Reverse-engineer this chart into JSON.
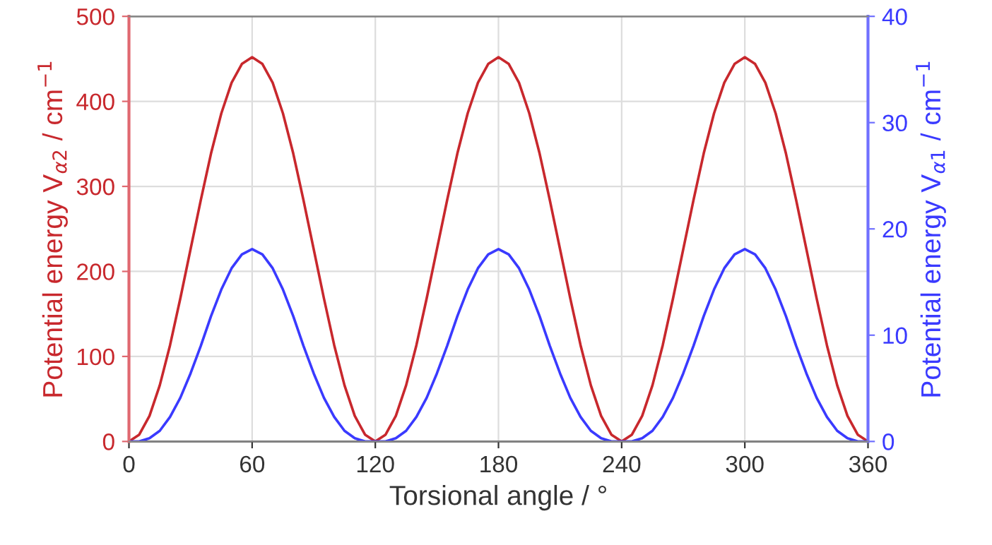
{
  "chart_data": {
    "type": "line",
    "xlabel": "Torsional angle / °",
    "ylabel": "Potential energy V$_{α2}$ / cm$^{−1}$",
    "y2label": "Potential energy V$_{α1}$ / cm$^{−1}$",
    "x": [
      0,
      5,
      10,
      15,
      20,
      25,
      30,
      35,
      40,
      45,
      50,
      55,
      60,
      65,
      70,
      75,
      80,
      85,
      90,
      95,
      100,
      105,
      110,
      115,
      120,
      125,
      130,
      135,
      140,
      145,
      150,
      155,
      160,
      165,
      170,
      175,
      180,
      185,
      190,
      195,
      200,
      205,
      210,
      215,
      220,
      225,
      230,
      235,
      240,
      245,
      250,
      255,
      260,
      265,
      270,
      275,
      280,
      285,
      290,
      295,
      300,
      305,
      310,
      315,
      320,
      325,
      330,
      335,
      340,
      345,
      350,
      355,
      360
    ],
    "series": [
      {
        "color": "#c8282d",
        "values": [
          0,
          8,
          30,
          66,
          113,
          168,
          226,
          284,
          339,
          386,
          422,
          444,
          452,
          444,
          422,
          386,
          339,
          284,
          226,
          168,
          113,
          66,
          30,
          8,
          0,
          8,
          30,
          66,
          113,
          168,
          226,
          284,
          339,
          386,
          422,
          444,
          452,
          444,
          422,
          386,
          339,
          284,
          226,
          168,
          113,
          66,
          30,
          8,
          0,
          8,
          30,
          66,
          113,
          168,
          226,
          284,
          339,
          386,
          422,
          444,
          452,
          444,
          422,
          386,
          339,
          284,
          226,
          168,
          113,
          66,
          30,
          8,
          0
        ]
      },
      {
        "color": "#3a3aff",
        "axis": "y2",
        "values": [
          0,
          0,
          0.3,
          1.0,
          2.3,
          4.1,
          6.4,
          9.0,
          11.8,
          14.3,
          16.3,
          17.6,
          18.1,
          17.6,
          16.3,
          14.3,
          11.8,
          9.0,
          6.4,
          4.1,
          2.3,
          1.0,
          0.3,
          0,
          0,
          0,
          0.3,
          1.0,
          2.3,
          4.1,
          6.4,
          9.0,
          11.8,
          14.3,
          16.3,
          17.6,
          18.1,
          17.6,
          16.3,
          14.3,
          11.8,
          9.0,
          6.4,
          4.1,
          2.3,
          1.0,
          0.3,
          0,
          0,
          0,
          0.3,
          1.0,
          2.3,
          4.1,
          6.4,
          9.0,
          11.8,
          14.3,
          16.3,
          17.6,
          18.1,
          17.6,
          16.3,
          14.3,
          11.8,
          9.0,
          6.4,
          4.1,
          2.3,
          1.0,
          0.3,
          0,
          0
        ]
      }
    ],
    "xlim": [
      0,
      360
    ],
    "xticks": [
      0,
      60,
      120,
      180,
      240,
      300,
      360
    ],
    "ylim": [
      0,
      500
    ],
    "yticks": [
      0,
      100,
      200,
      300,
      400,
      500
    ],
    "y2lim": [
      0,
      40
    ],
    "y2ticks": [
      0,
      10,
      20,
      30,
      40
    ],
    "grid": true,
    "line_style": "solid",
    "marker": "none"
  }
}
